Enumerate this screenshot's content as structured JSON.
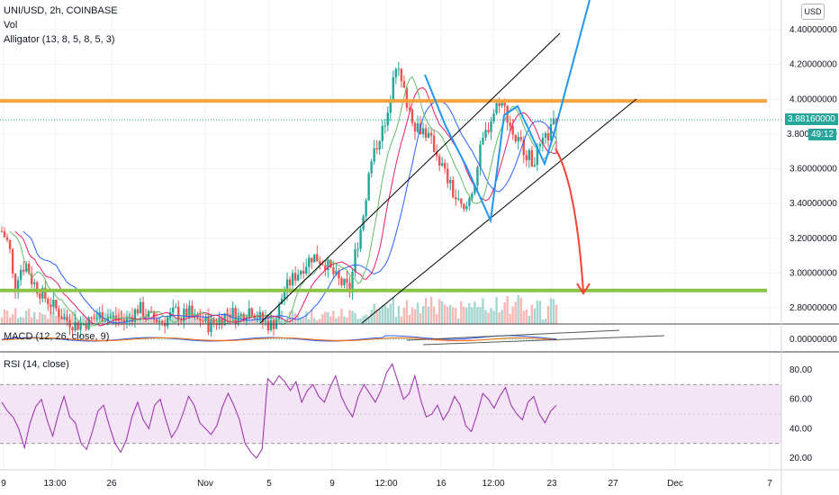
{
  "header": {
    "symbol_line": "UNI/USD, 2h, COINBASE",
    "vol_label": "Vol",
    "alligator_label": "Alligator (13, 8, 5, 8, 5, 3)",
    "macd_label": "MACD (12, 26, close, 9)",
    "rsi_label": "RSI (14, close)"
  },
  "currency_button": "USD",
  "price_tag": {
    "value": "3.88160000",
    "countdown": "49:12",
    "partial": "3.800",
    "color": "#26a69a"
  },
  "colors": {
    "up": "#26a69a",
    "down": "#ef5350",
    "orange": "#f7a440",
    "green_line": "#8bc34a",
    "blue_path": "#2196f3",
    "projection_up": "#2196f3",
    "projection_down": "#f44336",
    "rsi_line": "#9c27b0",
    "rsi_band": "#e1bee7"
  },
  "chart_data": [
    {
      "type": "candlestick",
      "title": "UNI/USD, 2h, COINBASE",
      "x_ticks": [
        "9",
        "13:00",
        "26",
        "Nov",
        "5",
        "9",
        "12:00",
        "16",
        "12:00",
        "23",
        "27",
        "Dec",
        "7"
      ],
      "y_ticks": [
        "4.40000000",
        "4.20000000",
        "4.00000000",
        "3.80000000",
        "3.60000000",
        "3.40000000",
        "3.20000000",
        "3.00000000",
        "2.80000000"
      ],
      "ylim": [
        2.72,
        4.48
      ],
      "price_path": [
        [
          0,
          3.24
        ],
        [
          0.03,
          3.16
        ],
        [
          0.05,
          2.9
        ],
        [
          0.07,
          3.02
        ],
        [
          0.1,
          3.05
        ],
        [
          0.12,
          2.96
        ],
        [
          0.16,
          2.88
        ],
        [
          0.2,
          2.82
        ],
        [
          0.25,
          2.74
        ],
        [
          0.3,
          2.7
        ],
        [
          0.35,
          2.72
        ],
        [
          0.4,
          2.76
        ],
        [
          0.45,
          2.74
        ],
        [
          0.5,
          2.72
        ],
        [
          0.55,
          2.8
        ],
        [
          0.6,
          2.74
        ],
        [
          0.65,
          2.72
        ],
        [
          0.7,
          2.78
        ],
        [
          0.72,
          2.74
        ],
        [
          0.75,
          2.78
        ],
        [
          0.78,
          2.72
        ],
        [
          0.8,
          2.74
        ],
        [
          0.83,
          2.7
        ],
        [
          0.86,
          2.72
        ],
        [
          0.9,
          2.76
        ],
        [
          0.92,
          2.78
        ],
        [
          0.95,
          2.74
        ],
        [
          1.0,
          2.8
        ],
        [
          1.05,
          2.72
        ],
        [
          1.08,
          2.7
        ],
        [
          1.1,
          2.72
        ],
        [
          1.13,
          2.88
        ],
        [
          1.16,
          2.95
        ],
        [
          1.2,
          3.02
        ],
        [
          1.25,
          3.1
        ],
        [
          1.3,
          3.06
        ],
        [
          1.35,
          2.96
        ],
        [
          1.4,
          2.9
        ],
        [
          1.42,
          3.1
        ],
        [
          1.45,
          3.3
        ],
        [
          1.48,
          3.6
        ],
        [
          1.52,
          3.8
        ],
        [
          1.55,
          3.86
        ],
        [
          1.58,
          4.24
        ],
        [
          1.6,
          4.12
        ],
        [
          1.63,
          3.98
        ],
        [
          1.66,
          3.86
        ],
        [
          1.7,
          3.82
        ],
        [
          1.74,
          3.72
        ],
        [
          1.78,
          3.58
        ],
        [
          1.82,
          3.44
        ],
        [
          1.86,
          3.34
        ],
        [
          1.9,
          3.52
        ],
        [
          1.93,
          3.74
        ],
        [
          1.96,
          3.86
        ],
        [
          2.0,
          4.0
        ],
        [
          2.03,
          3.92
        ],
        [
          2.06,
          3.78
        ],
        [
          2.1,
          3.72
        ],
        [
          2.13,
          3.64
        ],
        [
          2.16,
          3.7
        ],
        [
          2.2,
          3.8
        ],
        [
          2.23,
          3.88
        ]
      ],
      "levels": [
        {
          "name": "resistance",
          "value": 3.99,
          "color": "#f7a440"
        },
        {
          "name": "support",
          "value": 2.9,
          "color": "#8bc34a"
        }
      ],
      "last_price": 3.8816
    },
    {
      "type": "line",
      "title": "MACD (12, 26, close, 9)",
      "y_ticks": [
        "0.00000000"
      ]
    },
    {
      "type": "line",
      "title": "RSI (14, close)",
      "y_ticks": [
        "80.00",
        "60.00",
        "40.00",
        "20.00"
      ],
      "ylim": [
        10,
        90
      ],
      "band": [
        30,
        70
      ],
      "values": [
        58,
        52,
        48,
        40,
        27,
        44,
        55,
        60,
        46,
        35,
        50,
        62,
        48,
        44,
        30,
        26,
        38,
        52,
        56,
        42,
        30,
        24,
        32,
        48,
        58,
        46,
        40,
        56,
        60,
        46,
        34,
        40,
        50,
        62,
        56,
        44,
        40,
        36,
        42,
        55,
        64,
        56,
        46,
        30,
        24,
        20,
        26,
        74,
        70,
        76,
        72,
        66,
        72,
        58,
        66,
        70,
        62,
        58,
        68,
        76,
        62,
        54,
        48,
        62,
        70,
        64,
        58,
        66,
        78,
        84,
        72,
        60,
        64,
        76,
        60,
        48,
        50,
        56,
        46,
        52,
        62,
        56,
        42,
        38,
        50,
        64,
        60,
        54,
        62,
        68,
        56,
        50,
        46,
        58,
        62,
        50,
        44,
        52,
        56
      ]
    }
  ]
}
